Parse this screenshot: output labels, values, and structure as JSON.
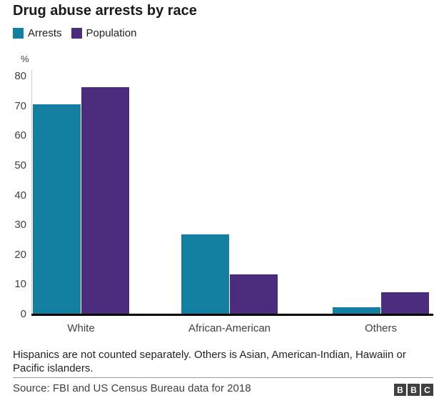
{
  "header": {
    "title": "Drug abuse arrests by race"
  },
  "chart_data": {
    "type": "bar",
    "title": "Drug abuse arrests by race",
    "categories": [
      "White",
      "African-American",
      "Others"
    ],
    "series": [
      {
        "name": "Arrests",
        "color": "#1380A1",
        "values": [
          70.7,
          26.9,
          2.4
        ]
      },
      {
        "name": "Population",
        "color": "#4C2C7C",
        "values": [
          76.5,
          13.4,
          7.5
        ]
      }
    ],
    "xlabel": "",
    "ylabel": "%",
    "unit_label": "%",
    "ylim": [
      0,
      80
    ],
    "yticks": [
      0,
      10,
      20,
      30,
      40,
      50,
      60,
      70,
      80
    ],
    "grid": false,
    "legend_position": "top-left"
  },
  "footer": {
    "note_lines": [
      "Hispanics are not counted separately. Others is Asian, American-Indian, Hawaiin or",
      "Pacific islanders."
    ],
    "source": "Source: FBI and US Census Bureau data for 2018",
    "logo_letters": [
      "B",
      "B",
      "C"
    ]
  }
}
